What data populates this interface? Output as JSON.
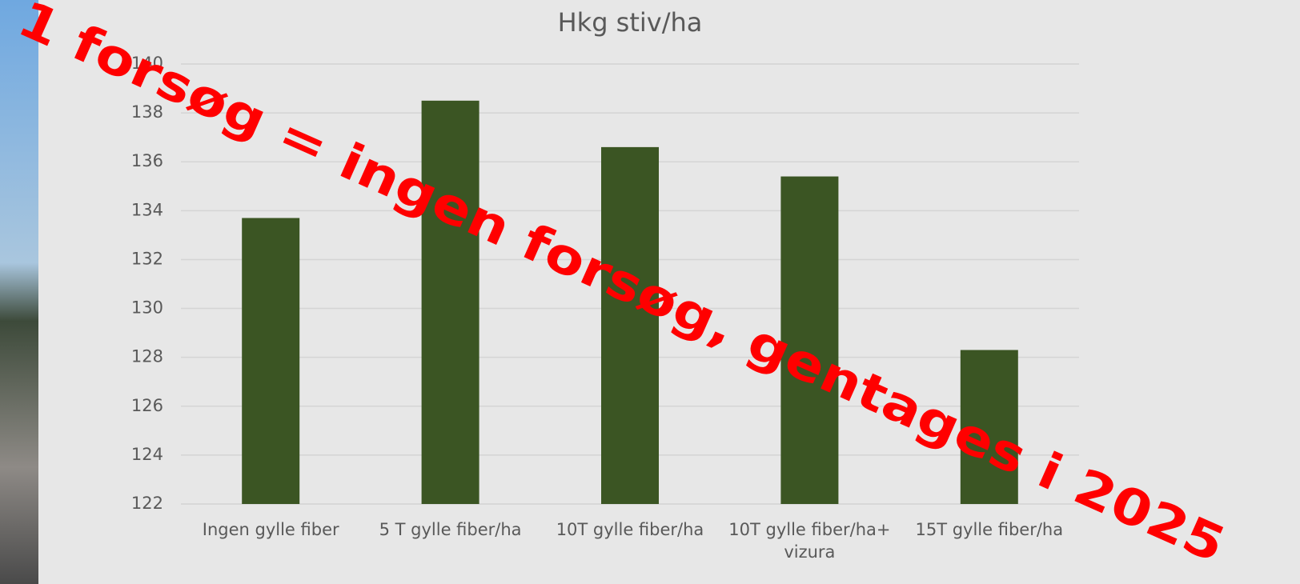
{
  "chart_data": {
    "type": "bar",
    "title": "Hkg stiv/ha",
    "categories": [
      "Ingen gylle fiber",
      "5 T gylle fiber/ha",
      "10T gylle fiber/ha",
      "10T gylle fiber/ha+ vizura",
      "15T gylle fiber/ha"
    ],
    "values": [
      133.7,
      138.5,
      136.6,
      135.4,
      128.3
    ],
    "color": "#3b5523",
    "ylim": [
      122,
      140
    ],
    "yticks": [
      122,
      124,
      126,
      128,
      130,
      132,
      134,
      136,
      138,
      140
    ],
    "grid": true,
    "annotation": "1 forsøg = ingen forsøg, gentages i 2025"
  }
}
